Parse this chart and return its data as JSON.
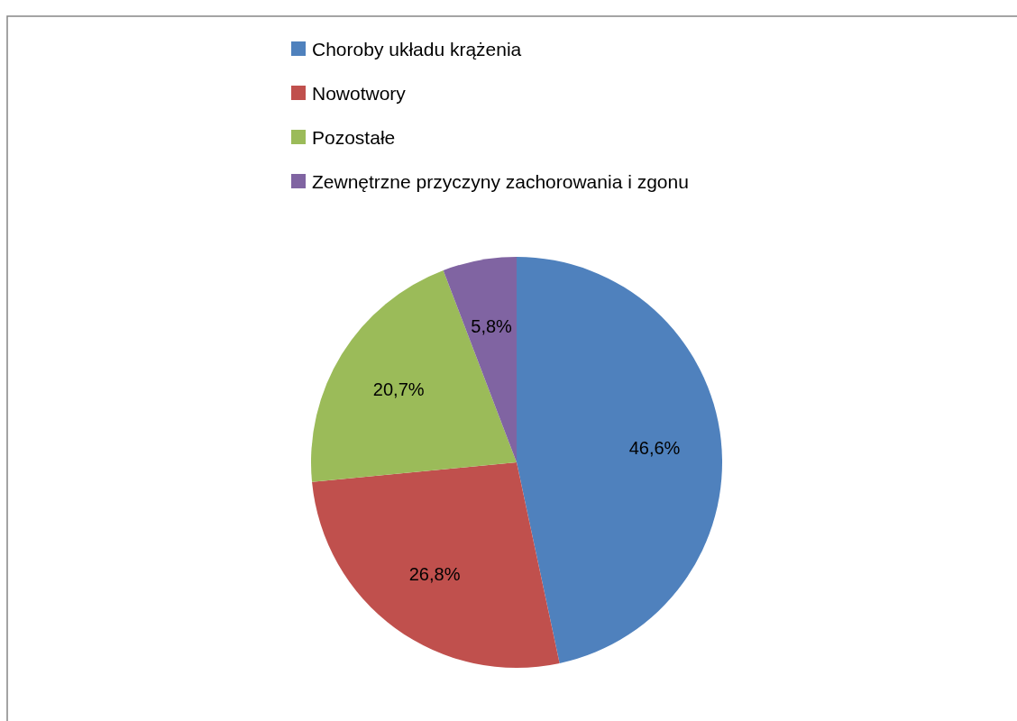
{
  "chart_data": {
    "type": "pie",
    "categories": [
      "Choroby układu krążenia",
      "Nowotwory",
      "Pozostałe",
      "Zewnętrzne przyczyny zachorowania  i zgonu"
    ],
    "values": [
      46.6,
      26.8,
      20.7,
      5.8
    ],
    "colors": [
      "#4f81bd",
      "#c0504d",
      "#9bbb59",
      "#8064a2"
    ],
    "value_labels": [
      "46,6%",
      "26,8%",
      "20,7%",
      "5,8%"
    ],
    "legend": "top"
  }
}
